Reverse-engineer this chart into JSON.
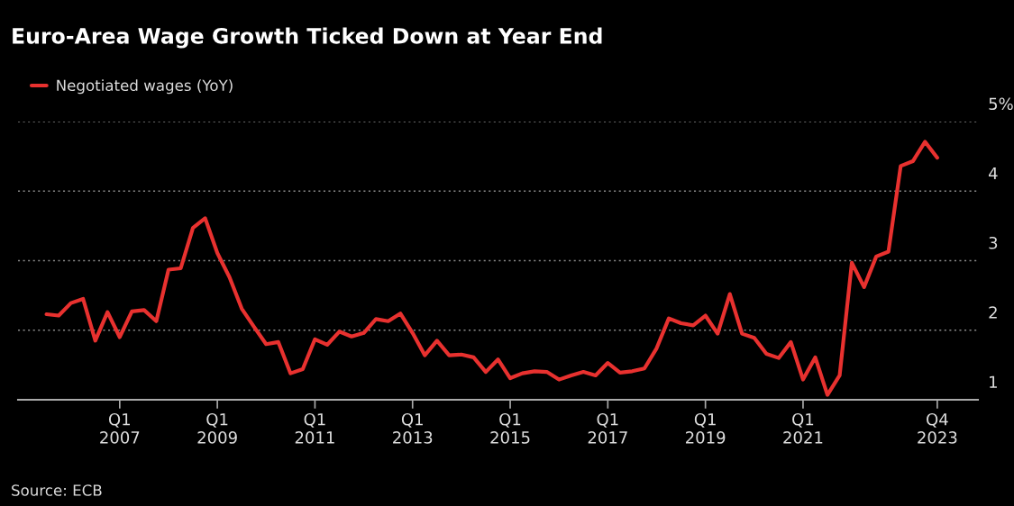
{
  "chart_data": {
    "type": "line",
    "title": "Euro-Area Wage Growth Ticked Down at Year End",
    "annotations": [
      "Source: ECB"
    ],
    "x": [
      "2005-07",
      "2005-10",
      "2006-01",
      "2006-04",
      "2006-07",
      "2006-10",
      "2007-01",
      "2007-04",
      "2007-07",
      "2007-10",
      "2008-01",
      "2008-04",
      "2008-07",
      "2008-10",
      "2009-01",
      "2009-04",
      "2009-07",
      "2009-10",
      "2010-01",
      "2010-04",
      "2010-07",
      "2010-10",
      "2011-01",
      "2011-04",
      "2011-07",
      "2011-10",
      "2012-01",
      "2012-04",
      "2012-07",
      "2012-10",
      "2013-01",
      "2013-04",
      "2013-07",
      "2013-10",
      "2014-01",
      "2014-04",
      "2014-07",
      "2014-10",
      "2015-01",
      "2015-04",
      "2015-07",
      "2015-10",
      "2016-01",
      "2016-04",
      "2016-07",
      "2016-10",
      "2017-01",
      "2017-04",
      "2017-07",
      "2017-10",
      "2018-01",
      "2018-04",
      "2018-07",
      "2018-10",
      "2019-01",
      "2019-04",
      "2019-07",
      "2019-10",
      "2020-01",
      "2020-04",
      "2020-07",
      "2020-10",
      "2021-01",
      "2021-04",
      "2021-07",
      "2021-10",
      "2022-01",
      "2022-04",
      "2022-07",
      "2022-10",
      "2023-01",
      "2023-04",
      "2023-07",
      "2023-10"
    ],
    "series": [
      {
        "name": "Negotiated wages (YoY)",
        "color": "#e8312f",
        "values": [
          2.23,
          2.21,
          2.39,
          2.45,
          1.85,
          2.26,
          1.9,
          2.27,
          2.29,
          2.13,
          2.87,
          2.89,
          3.47,
          3.61,
          3.11,
          2.76,
          2.31,
          2.05,
          1.8,
          1.83,
          1.38,
          1.44,
          1.87,
          1.79,
          1.98,
          1.91,
          1.96,
          2.16,
          2.13,
          2.24,
          1.96,
          1.64,
          1.85,
          1.64,
          1.65,
          1.61,
          1.4,
          1.58,
          1.31,
          1.38,
          1.41,
          1.4,
          1.29,
          1.35,
          1.4,
          1.35,
          1.53,
          1.39,
          1.41,
          1.45,
          1.74,
          2.17,
          2.1,
          2.07,
          2.21,
          1.95,
          2.52,
          1.95,
          1.89,
          1.66,
          1.6,
          1.83,
          1.29,
          1.61,
          1.07,
          1.35,
          2.97,
          2.62,
          3.06,
          3.13,
          4.36,
          4.43,
          4.71,
          4.48
        ]
      }
    ],
    "xlim": [
      "2004-12",
      "2024-08"
    ],
    "xticks": [
      {
        "value": "2007-01",
        "label": "Q1\n2007"
      },
      {
        "value": "2009-01",
        "label": "Q1\n2009"
      },
      {
        "value": "2011-01",
        "label": "Q1\n2011"
      },
      {
        "value": "2013-01",
        "label": "Q1\n2013"
      },
      {
        "value": "2015-01",
        "label": "Q1\n2015"
      },
      {
        "value": "2017-01",
        "label": "Q1\n2017"
      },
      {
        "value": "2019-01",
        "label": "Q1\n2019"
      },
      {
        "value": "2021-01",
        "label": "Q1\n2021"
      },
      {
        "value": "2023-10",
        "label": "Q4\n2023"
      }
    ],
    "ylim": [
      1,
      5
    ],
    "yticks": [
      1,
      2,
      3,
      4,
      {
        "value": 5,
        "label": "5%"
      }
    ],
    "grid": "y",
    "legend": "top left",
    "marker": "none",
    "line_style": "solid"
  }
}
